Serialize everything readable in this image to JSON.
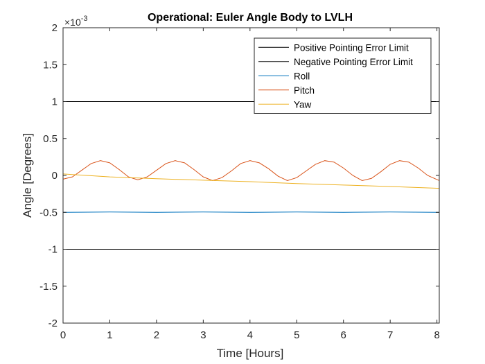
{
  "chart_data": {
    "type": "line",
    "title": "Operational: Euler Angle Body to LVLH",
    "xlabel": "Time [Hours]",
    "ylabel": "Angle [Degrees]",
    "y_exponent_prefix": "×10",
    "y_exponent_power": "-3",
    "xlim": [
      0,
      8.05
    ],
    "ylim": [
      -2,
      2
    ],
    "xticks": [
      0,
      1,
      2,
      3,
      4,
      5,
      6,
      7,
      8
    ],
    "xtick_labels": [
      "0",
      "1",
      "2",
      "3",
      "4",
      "5",
      "6",
      "7",
      "8"
    ],
    "yticks": [
      2,
      1.5,
      1,
      0.5,
      0,
      -0.5,
      -1,
      -1.5,
      -2
    ],
    "ytick_labels": [
      "2",
      "1.5",
      "1",
      "0.5",
      "0",
      "-0.5",
      "-1",
      "-1.5",
      "-2"
    ],
    "grid": false,
    "legend_position": "top-right",
    "series": [
      {
        "name": "Positive Pointing Error Limit",
        "color": "#000000",
        "x": [
          0,
          8.05
        ],
        "y": [
          1,
          1
        ]
      },
      {
        "name": "Negative Pointing Error Limit",
        "color": "#000000",
        "x": [
          0,
          8.05
        ],
        "y": [
          -1,
          -1
        ]
      },
      {
        "name": "Roll",
        "color": "#0072BD",
        "x": [
          0,
          1,
          2,
          3,
          4,
          5,
          6,
          7,
          8.05
        ],
        "y": [
          -0.5,
          -0.495,
          -0.5,
          -0.495,
          -0.5,
          -0.495,
          -0.5,
          -0.495,
          -0.5
        ]
      },
      {
        "name": "Pitch",
        "color": "#D95319",
        "x": [
          0,
          0.2,
          0.4,
          0.6,
          0.8,
          1.0,
          1.2,
          1.4,
          1.6,
          1.8,
          2.0,
          2.2,
          2.4,
          2.6,
          2.8,
          3.0,
          3.2,
          3.4,
          3.6,
          3.8,
          4.0,
          4.2,
          4.4,
          4.6,
          4.8,
          5.0,
          5.2,
          5.4,
          5.6,
          5.8,
          6.0,
          6.2,
          6.4,
          6.6,
          6.8,
          7.0,
          7.2,
          7.4,
          7.6,
          7.8,
          8.05
        ],
        "y": [
          -0.05,
          -0.02,
          0.07,
          0.16,
          0.2,
          0.17,
          0.08,
          -0.02,
          -0.06,
          -0.02,
          0.07,
          0.16,
          0.2,
          0.17,
          0.08,
          -0.02,
          -0.07,
          -0.03,
          0.06,
          0.16,
          0.2,
          0.17,
          0.09,
          -0.01,
          -0.07,
          -0.03,
          0.06,
          0.15,
          0.2,
          0.18,
          0.1,
          0.0,
          -0.07,
          -0.04,
          0.05,
          0.15,
          0.2,
          0.18,
          0.1,
          0.0,
          -0.07
        ]
      },
      {
        "name": "Yaw",
        "color": "#EDB120",
        "x": [
          0,
          1,
          2,
          3,
          4,
          5,
          6,
          7,
          8.05
        ],
        "y": [
          0.02,
          -0.02,
          -0.045,
          -0.065,
          -0.085,
          -0.11,
          -0.13,
          -0.15,
          -0.175
        ]
      }
    ]
  }
}
